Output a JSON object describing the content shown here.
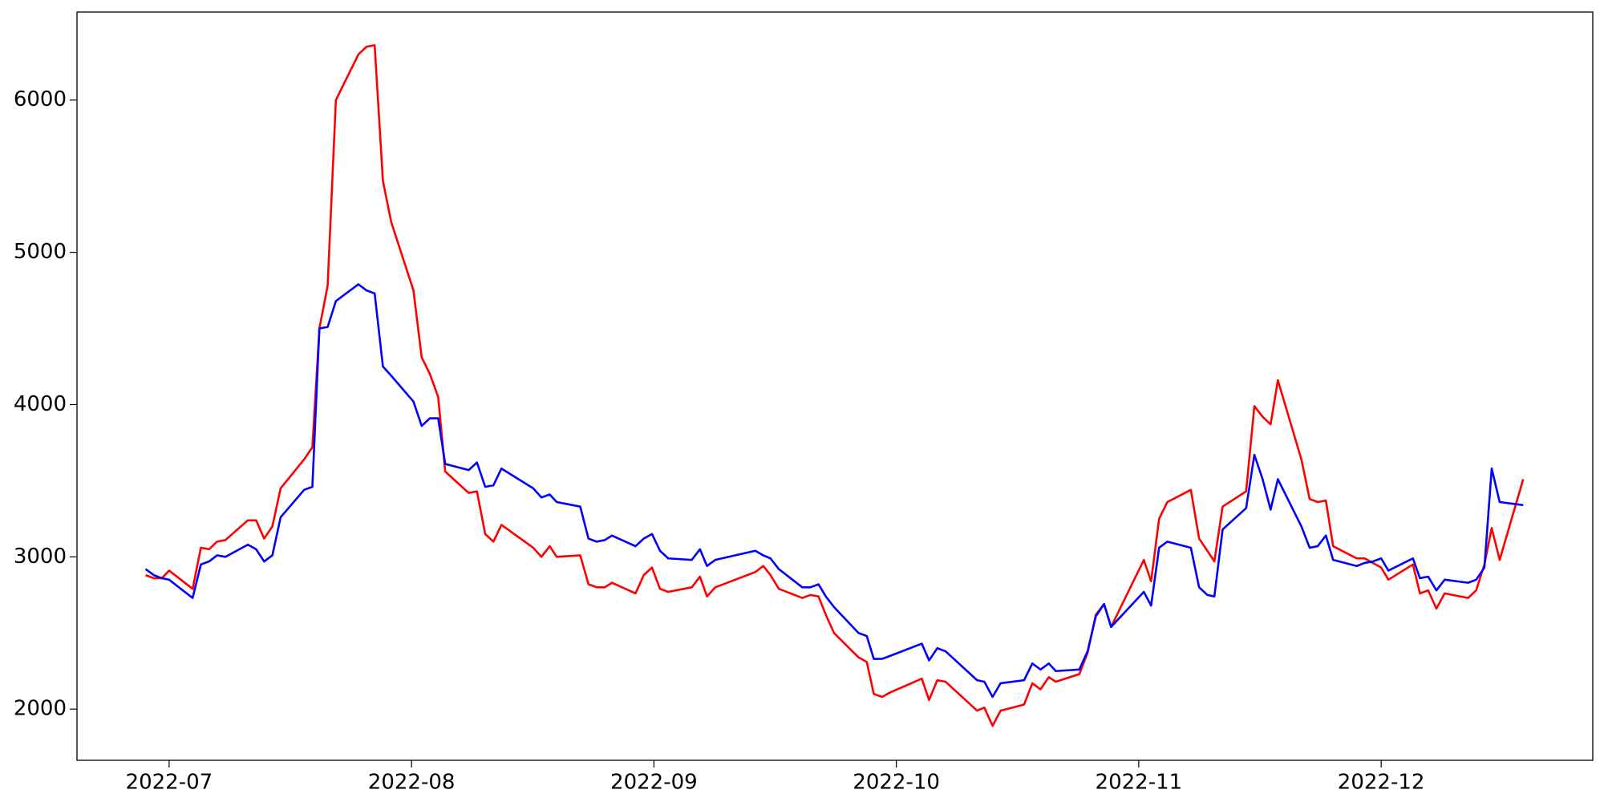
{
  "chart_data": {
    "type": "line",
    "x": [
      6.903,
      6.937,
      6.97,
      7.0,
      7.097,
      7.131,
      7.165,
      7.198,
      7.232,
      7.325,
      7.359,
      7.392,
      7.426,
      7.46,
      7.557,
      7.591,
      7.62,
      7.654,
      7.688,
      7.781,
      7.814,
      7.848,
      7.882,
      7.916,
      8.008,
      8.042,
      8.076,
      8.11,
      8.139,
      8.236,
      8.27,
      8.304,
      8.338,
      8.371,
      8.502,
      8.536,
      8.57,
      8.599,
      8.696,
      8.73,
      8.764,
      8.797,
      8.827,
      8.924,
      8.958,
      8.992,
      9.025,
      9.059,
      9.156,
      9.19,
      9.219,
      9.253,
      9.418,
      9.451,
      9.481,
      9.515,
      9.612,
      9.646,
      9.679,
      9.709,
      9.743,
      9.844,
      9.878,
      9.907,
      9.941,
      9.975,
      10.105,
      10.135,
      10.169,
      10.203,
      10.333,
      10.363,
      10.397,
      10.43,
      10.527,
      10.561,
      10.595,
      10.629,
      10.658,
      10.755,
      10.789,
      10.823,
      10.857,
      10.886,
      11.021,
      11.051,
      11.084,
      11.118,
      11.215,
      11.249,
      11.283,
      11.312,
      11.346,
      11.443,
      11.477,
      11.511,
      11.544,
      11.574,
      11.671,
      11.705,
      11.738,
      11.772,
      11.802,
      11.899,
      11.932,
      11.966,
      12.0,
      12.03,
      12.131,
      12.16,
      12.194,
      12.228,
      12.262,
      12.359,
      12.392,
      12.426,
      12.456,
      12.489,
      12.586
    ],
    "series": [
      {
        "color": "#ff0000",
        "values": [
          2880,
          2860,
          2860,
          2910,
          2790,
          3060,
          3050,
          3100,
          3110,
          3240,
          3240,
          3120,
          3200,
          3450,
          3640,
          3720,
          4500,
          4780,
          6000,
          6300,
          6350,
          6360,
          5470,
          5200,
          4750,
          4310,
          4200,
          4050,
          3560,
          3420,
          3430,
          3150,
          3100,
          3210,
          3060,
          3000,
          3070,
          3000,
          3010,
          2820,
          2800,
          2800,
          2830,
          2760,
          2880,
          2930,
          2790,
          2770,
          2800,
          2870,
          2740,
          2800,
          2900,
          2940,
          2880,
          2790,
          2730,
          2750,
          2740,
          2620,
          2500,
          2340,
          2310,
          2100,
          2080,
          2110,
          2200,
          2060,
          2190,
          2180,
          1990,
          2010,
          1890,
          1990,
          2030,
          2170,
          2130,
          2210,
          2180,
          2230,
          2370,
          2620,
          2690,
          2540,
          2980,
          2840,
          3250,
          3360,
          3440,
          3120,
          3040,
          2970,
          3330,
          3430,
          3990,
          3920,
          3870,
          4160,
          3640,
          3380,
          3360,
          3370,
          3070,
          2990,
          2990,
          2960,
          2930,
          2850,
          2950,
          2760,
          2780,
          2660,
          2760,
          2730,
          2780,
          2950,
          3190,
          2980,
          3510
        ]
      },
      {
        "color": "#0000ff",
        "values": [
          2920,
          2880,
          2860,
          2850,
          2730,
          2950,
          2970,
          3010,
          3000,
          3080,
          3050,
          2970,
          3010,
          3260,
          3440,
          3460,
          4500,
          4510,
          4680,
          4790,
          4750,
          4730,
          4250,
          4190,
          4020,
          3860,
          3910,
          3910,
          3610,
          3570,
          3620,
          3460,
          3470,
          3580,
          3450,
          3390,
          3410,
          3360,
          3330,
          3120,
          3100,
          3110,
          3140,
          3070,
          3120,
          3150,
          3040,
          2990,
          2980,
          3050,
          2940,
          2980,
          3040,
          3010,
          2990,
          2920,
          2800,
          2800,
          2820,
          2740,
          2670,
          2500,
          2480,
          2330,
          2330,
          2350,
          2430,
          2320,
          2400,
          2380,
          2190,
          2180,
          2080,
          2170,
          2190,
          2300,
          2260,
          2300,
          2250,
          2260,
          2380,
          2610,
          2690,
          2540,
          2770,
          2680,
          3060,
          3100,
          3060,
          2800,
          2750,
          2740,
          3180,
          3320,
          3670,
          3510,
          3310,
          3510,
          3200,
          3060,
          3070,
          3140,
          2980,
          2940,
          2960,
          2970,
          2990,
          2910,
          2990,
          2860,
          2870,
          2780,
          2850,
          2830,
          2850,
          2930,
          3580,
          3360,
          3340
        ]
      }
    ],
    "xlim": [
      6.62,
      12.873
    ],
    "xticks": [
      {
        "value": 7,
        "label": "2022-07"
      },
      {
        "value": 8,
        "label": "2022-08"
      },
      {
        "value": 9,
        "label": "2022-09"
      },
      {
        "value": 10,
        "label": "2022-10"
      },
      {
        "value": 11,
        "label": "2022-11"
      },
      {
        "value": 12,
        "label": "2022-12"
      }
    ],
    "ylim": [
      1664,
      6578
    ],
    "yticks": [
      2000,
      3000,
      4000,
      5000,
      6000
    ],
    "grid": false
  }
}
